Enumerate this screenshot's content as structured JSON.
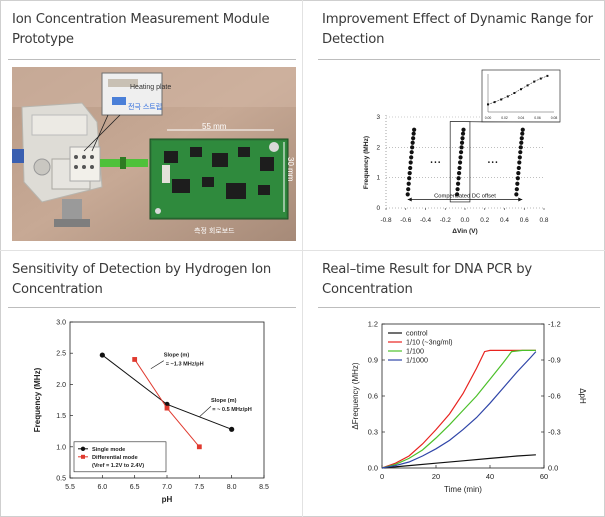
{
  "panels": [
    {
      "title_line1": "Ion Concentration Measurement Module",
      "title_line2": "Prototype"
    },
    {
      "title_line1": "Improvement Effect of Dynamic Range for",
      "title_line2": "Detection"
    },
    {
      "title_line1": "Sensitivity of Detection by Hydrogen Ion",
      "title_line2": "Concentration"
    },
    {
      "title_line1": "Real–time Result for DNA PCR by",
      "title_line2": "Concentration"
    }
  ],
  "photo": {
    "heating_label": "Heating plate",
    "electrode_label": "전극 스트립",
    "width_label": "55 mm",
    "height_label": "30 mm",
    "board_label": "측정 회로보드"
  },
  "chart_data": [
    {
      "type": "scatter",
      "xlabel": "ΔVin (V)",
      "ylabel": "Frequency (MHz)",
      "xlim": [
        -0.8,
        0.8
      ],
      "ylim": [
        0,
        3
      ],
      "x_ticks": [
        "-0.8",
        "-0.6",
        "-0.4",
        "-0.2",
        "0.0",
        "0.2",
        "0.4",
        "0.6",
        "0.8"
      ],
      "y_ticks": [
        "0",
        "1",
        "2",
        "3"
      ],
      "annotation": "Compensated DC offset",
      "ellipsis": "• • •",
      "groups": [
        {
          "center": -0.55,
          "values": [
            [
              -0.58,
              0.45
            ],
            [
              -0.575,
              0.62
            ],
            [
              -0.57,
              0.8
            ],
            [
              -0.565,
              0.98
            ],
            [
              -0.56,
              1.15
            ],
            [
              -0.555,
              1.32
            ],
            [
              -0.55,
              1.5
            ],
            [
              -0.545,
              1.67
            ],
            [
              -0.54,
              1.84
            ],
            [
              -0.535,
              2.0
            ],
            [
              -0.53,
              2.15
            ],
            [
              -0.525,
              2.3
            ],
            [
              -0.52,
              2.45
            ],
            [
              -0.515,
              2.58
            ]
          ]
        },
        {
          "center": -0.05,
          "values": [
            [
              -0.08,
              0.45
            ],
            [
              -0.075,
              0.62
            ],
            [
              -0.07,
              0.8
            ],
            [
              -0.065,
              0.98
            ],
            [
              -0.06,
              1.15
            ],
            [
              -0.055,
              1.32
            ],
            [
              -0.05,
              1.5
            ],
            [
              -0.045,
              1.67
            ],
            [
              -0.04,
              1.84
            ],
            [
              -0.035,
              2.0
            ],
            [
              -0.03,
              2.15
            ],
            [
              -0.025,
              2.3
            ],
            [
              -0.02,
              2.45
            ],
            [
              -0.015,
              2.58
            ]
          ]
        },
        {
          "center": 0.55,
          "values": [
            [
              0.52,
              0.45
            ],
            [
              0.525,
              0.62
            ],
            [
              0.53,
              0.8
            ],
            [
              0.535,
              0.98
            ],
            [
              0.54,
              1.15
            ],
            [
              0.545,
              1.32
            ],
            [
              0.55,
              1.5
            ],
            [
              0.555,
              1.67
            ],
            [
              0.56,
              1.84
            ],
            [
              0.565,
              2.0
            ],
            [
              0.57,
              2.15
            ],
            [
              0.575,
              2.3
            ],
            [
              0.58,
              2.45
            ],
            [
              0.585,
              2.58
            ]
          ]
        }
      ],
      "inset": {
        "x_ticks": [
          "0.00",
          "0.02",
          "0.04",
          "0.06",
          "0.08"
        ],
        "xlim": [
          0,
          0.08
        ],
        "values": [
          [
            0.0,
            0.2
          ],
          [
            0.008,
            0.26
          ],
          [
            0.016,
            0.33
          ],
          [
            0.024,
            0.41
          ],
          [
            0.032,
            0.5
          ],
          [
            0.04,
            0.6
          ],
          [
            0.048,
            0.7
          ],
          [
            0.056,
            0.8
          ],
          [
            0.064,
            0.88
          ],
          [
            0.072,
            0.95
          ]
        ]
      }
    },
    {
      "type": "line",
      "xlabel": "pH",
      "ylabel": "Frequency (MHz)",
      "xlim": [
        5.5,
        8.5
      ],
      "ylim": [
        0.5,
        3.0
      ],
      "x_ticks": [
        "5.5",
        "6.0",
        "6.5",
        "7.0",
        "7.5",
        "8.0",
        "8.5"
      ],
      "y_ticks": [
        "0.5",
        "1.0",
        "1.5",
        "2.0",
        "2.5",
        "3.0"
      ],
      "series": [
        {
          "name": "Single mode",
          "color": "#111111",
          "marker": "circle",
          "values": [
            [
              6.0,
              2.47
            ],
            [
              7.0,
              1.68
            ],
            [
              8.0,
              1.28
            ]
          ]
        },
        {
          "name": "Differential mode\n(Vref = 1.2V to 2.4V)",
          "color": "#e03a2f",
          "marker": "square",
          "values": [
            [
              6.5,
              2.4
            ],
            [
              7.0,
              1.62
            ],
            [
              7.5,
              1.0
            ]
          ]
        }
      ],
      "annotations": [
        {
          "line1": "Slope (m)",
          "line2": "= ~1.3 MHz/pH"
        },
        {
          "line1": "Slope (m)",
          "line2": "= ~ 0.5 MHz/pH"
        }
      ]
    },
    {
      "type": "line",
      "xlabel": "Time (min)",
      "ylabel": "ΔFrequency (MHz)",
      "y2label": "ΔpH",
      "xlim": [
        0,
        60
      ],
      "ylim": [
        0,
        1.2
      ],
      "x_ticks": [
        "0",
        "20",
        "40",
        "60"
      ],
      "y_ticks": [
        "0.0",
        "0.3",
        "0.6",
        "0.9",
        "1.2"
      ],
      "y2_ticks": [
        "0.0",
        "-0.3",
        "-0.6",
        "-0.9",
        "-1.2"
      ],
      "series": [
        {
          "name": "control",
          "color": "#111111",
          "values": [
            [
              0,
              0
            ],
            [
              10,
              0.02
            ],
            [
              20,
              0.04
            ],
            [
              30,
              0.06
            ],
            [
              40,
              0.08
            ],
            [
              50,
              0.1
            ],
            [
              57,
              0.11
            ]
          ]
        },
        {
          "name": "1/10 (~3ng/ml)",
          "color": "#e8231f",
          "values": [
            [
              0,
              0
            ],
            [
              5,
              0.04
            ],
            [
              10,
              0.1
            ],
            [
              15,
              0.2
            ],
            [
              20,
              0.32
            ],
            [
              25,
              0.45
            ],
            [
              30,
              0.62
            ],
            [
              35,
              0.83
            ],
            [
              38,
              0.97
            ],
            [
              40,
              0.98
            ],
            [
              45,
              0.98
            ],
            [
              50,
              0.98
            ],
            [
              57,
              0.98
            ]
          ]
        },
        {
          "name": "1/100",
          "color": "#4cc02a",
          "values": [
            [
              0,
              0
            ],
            [
              5,
              0.03
            ],
            [
              10,
              0.08
            ],
            [
              15,
              0.15
            ],
            [
              20,
              0.25
            ],
            [
              25,
              0.36
            ],
            [
              30,
              0.48
            ],
            [
              35,
              0.6
            ],
            [
              40,
              0.74
            ],
            [
              45,
              0.88
            ],
            [
              48,
              0.97
            ],
            [
              52,
              0.98
            ],
            [
              57,
              0.98
            ]
          ]
        },
        {
          "name": "1/1000",
          "color": "#2f45a8",
          "values": [
            [
              0,
              0
            ],
            [
              5,
              0.02
            ],
            [
              10,
              0.05
            ],
            [
              15,
              0.1
            ],
            [
              20,
              0.16
            ],
            [
              25,
              0.23
            ],
            [
              30,
              0.32
            ],
            [
              35,
              0.42
            ],
            [
              40,
              0.54
            ],
            [
              45,
              0.67
            ],
            [
              50,
              0.8
            ],
            [
              55,
              0.92
            ],
            [
              57,
              0.97
            ]
          ]
        }
      ]
    }
  ]
}
